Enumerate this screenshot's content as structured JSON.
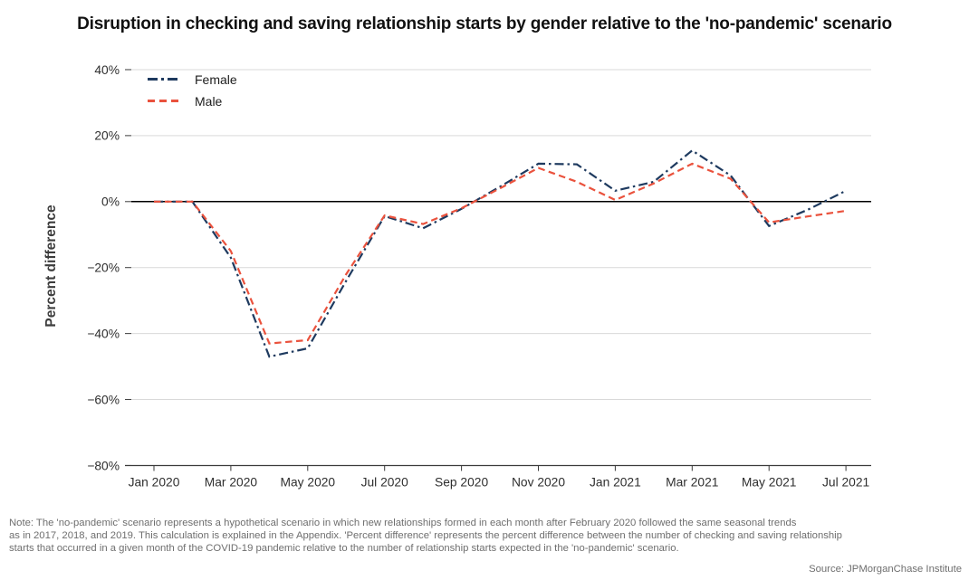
{
  "chart_data": {
    "type": "line",
    "title": "Disruption in checking and saving relationship starts by gender relative to the 'no-pandemic' scenario",
    "ylabel": "Percent difference",
    "xlabel": "",
    "ylim": [
      -80,
      40
    ],
    "grid": "horizontal",
    "legend_position": "top-left",
    "x": [
      "Jan 2020",
      "Feb 2020",
      "Mar 2020",
      "Apr 2020",
      "May 2020",
      "Jun 2020",
      "Jul 2020",
      "Aug 2020",
      "Sep 2020",
      "Oct 2020",
      "Nov 2020",
      "Dec 2020",
      "Jan 2021",
      "Feb 2021",
      "Mar 2021",
      "Apr 2021",
      "May 2021",
      "Jun 2021",
      "Jul 2021"
    ],
    "x_tick_labels": [
      "Jan 2020",
      "Mar 2020",
      "May 2020",
      "Jul 2020",
      "Sep 2020",
      "Nov 2020",
      "Jan 2021",
      "Mar 2021",
      "May 2021",
      "Jul 2021"
    ],
    "y_ticks": [
      40,
      20,
      0,
      -20,
      -40,
      -60,
      -80
    ],
    "y_tick_labels": [
      "40%",
      "20%",
      "0%",
      "−20%",
      "−40%",
      "−60%",
      "−80%"
    ],
    "series": [
      {
        "name": "Female",
        "color": "#1e3a5f",
        "dash": "dash-dot",
        "values": [
          0,
          0,
          -17,
          -47,
          -44.5,
          -24,
          -4.4,
          -8.1,
          -2.2,
          4.5,
          11.5,
          11.3,
          3.3,
          6.0,
          15.5,
          7.9,
          -7.4,
          -2.5,
          3.3
        ]
      },
      {
        "name": "Male",
        "color": "#ea523d",
        "dash": "dashed",
        "values": [
          0,
          0,
          -15,
          -43,
          -42,
          -22,
          -4.2,
          -6.8,
          -2.0,
          4.0,
          10.2,
          6.0,
          0.5,
          5.5,
          11.5,
          6.9,
          -6.3,
          -4.5,
          -2.8
        ]
      }
    ],
    "zero_line_color": "#000000",
    "gridline_color": "#d9d9d9",
    "axis_color": "#3a3a3a",
    "tick_label_color": "#2f2f2f"
  },
  "note": {
    "lines": [
      "Note: The 'no-pandemic' scenario represents a hypothetical scenario in which new relationships formed in each month after February 2020 followed the same seasonal trends",
      "as in 2017, 2018, and 2019. This calculation is explained in the Appendix. 'Percent difference' represents the percent difference between the number of checking and saving relationship",
      "starts that occurred in a given month of the COVID-19 pandemic relative to the number of relationship starts expected in the 'no-pandemic' scenario."
    ]
  },
  "source": "Source: JPMorganChase Institute"
}
